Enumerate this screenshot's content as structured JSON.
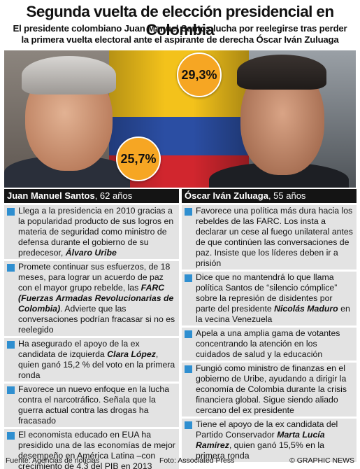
{
  "title": "Segunda vuelta de elección presidencial en Colombia",
  "subtitle_line1": "El presidente colombiano Juan Manuel Santos lucha por reelegirse tras perder",
  "subtitle_line2": "la primera vuelta electoral ante el aspirante de derecha Óscar Iván Zuluaga",
  "badges": {
    "zuluaga_pct": "29,3%",
    "santos_pct": "25,7%"
  },
  "colors": {
    "badge": "#f6a623",
    "bullet": "#2f8fd0",
    "header": "#141414",
    "item_bg": "#e3e3e3"
  },
  "santos": {
    "name": "Juan Manuel Santos",
    "age": ", 62 años",
    "items": [
      {
        "parts": [
          {
            "t": "Llega a la presidencia en 2010 gracias a la popularidad producto de sus logros en materia de seguridad como ministro de defensa durante el gobierno de su predecesor, "
          },
          {
            "t": "Álvaro Uribe",
            "em": true
          }
        ]
      },
      {
        "parts": [
          {
            "t": "Promete continuar sus esfuerzos, de 18 meses, para lograr un acuerdo de paz con el mayor grupo rebelde, las "
          },
          {
            "t": "FARC (Fuerzas Armadas Revolucionarias de Colombia)",
            "em": true
          },
          {
            "t": ". Advierte que las conversaciones podrían fracasar si no es reelegido"
          }
        ]
      },
      {
        "parts": [
          {
            "t": "Ha asegurado el apoyo de la ex candidata de izquierda "
          },
          {
            "t": "Clara López",
            "em": true
          },
          {
            "t": ", quien ganó 15,2 % del voto en la primera ronda"
          }
        ]
      },
      {
        "parts": [
          {
            "t": "Favorece un nuevo enfoque en la lucha contra el narcotráfico. Señala que la guerra actual contra las drogas ha fracasado"
          }
        ]
      },
      {
        "parts": [
          {
            "t": "El economista educado en EUA ha presidido una de las economías de mejor desempeño en América Latina –con crecimiento de 4,3 del PIB en 2013"
          }
        ]
      }
    ]
  },
  "zuluaga": {
    "name": "Óscar Iván Zuluaga",
    "age": ", 55 años",
    "items": [
      {
        "parts": [
          {
            "t": "Favorece una política más dura hacia los rebeldes de las FARC. Los insta a declarar un cese al fuego unilateral antes de que continúen las conversaciones de paz. Insiste que los líderes deben ir a prisión"
          }
        ]
      },
      {
        "parts": [
          {
            "t": "Dice que no mantendrá lo que llama política Santos de “silencio cómplice” sobre la represión de disidentes por parte del presidente "
          },
          {
            "t": "Nicolás Maduro",
            "em": true
          },
          {
            "t": " en la vecina Venezuela"
          }
        ]
      },
      {
        "parts": [
          {
            "t": "Apela a una amplia gama de votantes concentrando la atención en los cuidados de salud y la educación"
          }
        ]
      },
      {
        "parts": [
          {
            "t": "Fungió como ministro de finanzas en el gobierno de Uribe, ayudando a dirigir la economía de Colombia durante la crisis financiera global. Sigue siendo aliado cercano del ex presidente"
          }
        ]
      },
      {
        "parts": [
          {
            "t": "Tiene el apoyo de la ex candidata del Partido Conservador "
          },
          {
            "t": "Marta Lucía Ramírez",
            "em": true
          },
          {
            "t": ", quien ganó 15,5% en la primera ronda"
          }
        ]
      }
    ]
  },
  "footer": {
    "source": "Fuente: Agencias de noticias",
    "photo": "Foto: Associated Press",
    "credit": "© GRAPHIC NEWS"
  }
}
